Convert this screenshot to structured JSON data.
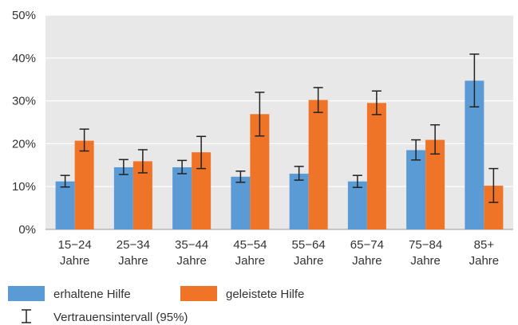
{
  "colors": {
    "erhaltene": "#5b9bd5",
    "geleistete": "#f07427",
    "plot_bg": "#e8e8e8",
    "grid": "#ffffff",
    "error_bar": "#222222"
  },
  "chart_data": {
    "type": "bar",
    "title": "",
    "xlabel": "",
    "ylabel": "",
    "ylim": [
      0,
      50
    ],
    "yticks": [
      "0%",
      "10%",
      "20%",
      "30%",
      "40%",
      "50%"
    ],
    "grid": true,
    "legend_placement": "bottom",
    "categories": [
      [
        "15−24",
        "Jahre"
      ],
      [
        "25−34",
        "Jahre"
      ],
      [
        "35−44",
        "Jahre"
      ],
      [
        "45−54",
        "Jahre"
      ],
      [
        "55−64",
        "Jahre"
      ],
      [
        "65−74",
        "Jahre"
      ],
      [
        "75−84",
        "Jahre"
      ],
      [
        "85+",
        "Jahre"
      ]
    ],
    "series": [
      {
        "name": "erhaltene Hilfe",
        "color": "#5b9bd5",
        "values": [
          11.2,
          14.5,
          14.5,
          12.3,
          13.0,
          11.2,
          18.5,
          34.7
        ],
        "ci": [
          [
            9.9,
            12.6
          ],
          [
            12.8,
            16.3
          ],
          [
            13.0,
            16.1
          ],
          [
            11.0,
            13.6
          ],
          [
            11.5,
            14.7
          ],
          [
            9.8,
            12.6
          ],
          [
            16.2,
            20.9
          ],
          [
            28.6,
            40.9
          ]
        ]
      },
      {
        "name": "geleistete Hilfe",
        "color": "#f07427",
        "values": [
          20.7,
          15.9,
          18.0,
          26.9,
          30.2,
          29.5,
          20.9,
          10.2
        ],
        "ci": [
          [
            18.3,
            23.4
          ],
          [
            13.2,
            18.6
          ],
          [
            14.2,
            21.7
          ],
          [
            21.8,
            32.0
          ],
          [
            27.3,
            33.1
          ],
          [
            26.8,
            32.3
          ],
          [
            17.6,
            24.4
          ],
          [
            6.3,
            14.2
          ]
        ]
      }
    ],
    "legend": {
      "items": [
        "erhaltene Hilfe",
        "geleistete Hilfe"
      ],
      "ci_label": "Vertrauensintervall (95%)"
    }
  }
}
